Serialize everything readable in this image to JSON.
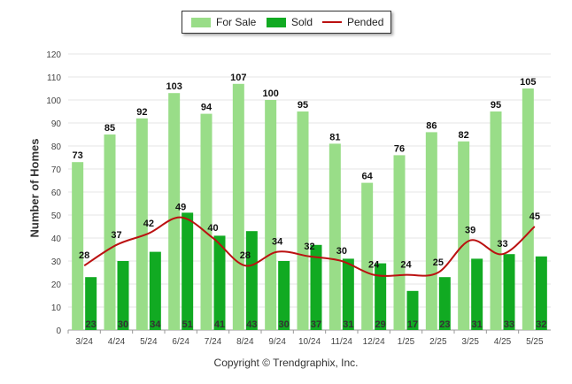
{
  "chart_data": {
    "type": "bar",
    "categories": [
      "3/24",
      "4/24",
      "5/24",
      "6/24",
      "7/24",
      "8/24",
      "9/24",
      "10/24",
      "11/24",
      "12/24",
      "1/25",
      "2/25",
      "3/25",
      "4/25",
      "5/25"
    ],
    "series": [
      {
        "name": "For Sale",
        "type": "bar",
        "color": "#99dd88",
        "values": [
          73,
          85,
          92,
          103,
          94,
          107,
          100,
          95,
          81,
          64,
          76,
          86,
          82,
          95,
          105
        ]
      },
      {
        "name": "Sold",
        "type": "bar",
        "color": "#11aa22",
        "values": [
          23,
          30,
          34,
          51,
          41,
          43,
          30,
          37,
          31,
          29,
          17,
          23,
          31,
          33,
          32
        ]
      },
      {
        "name": "Pended",
        "type": "line",
        "color": "#bb1111",
        "values": [
          28,
          37,
          42,
          49,
          40,
          28,
          34,
          32,
          30,
          24,
          24,
          25,
          39,
          33,
          45
        ]
      }
    ],
    "ylabel": "Number of Homes",
    "xlabel": "",
    "ylim": [
      0,
      120
    ],
    "yticks": [
      0,
      10,
      20,
      30,
      40,
      50,
      60,
      70,
      80,
      90,
      100,
      110,
      120
    ],
    "grid": true,
    "legend": "top-center"
  },
  "credit": "Copyright © Trendgraphix, Inc."
}
